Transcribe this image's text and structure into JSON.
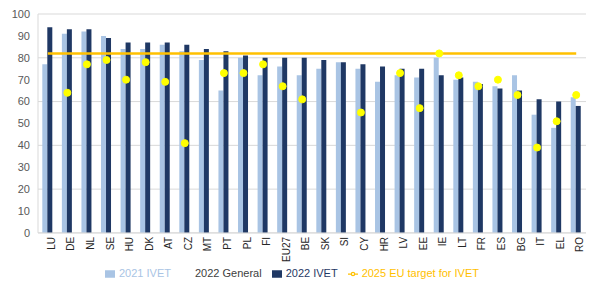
{
  "chart_data": {
    "type": "bar",
    "categories": [
      "LU",
      "DE",
      "NL",
      "SE",
      "HU",
      "DK",
      "AT",
      "CZ",
      "MT",
      "PT",
      "PL",
      "FI",
      "EU27",
      "BE",
      "SK",
      "SI",
      "CY",
      "HR",
      "LV",
      "EE",
      "IE",
      "LT",
      "FR",
      "ES",
      "BG",
      "IT",
      "EL",
      "RO"
    ],
    "series": [
      {
        "name": "2021 IVET",
        "type": "bar",
        "color": "#a9c4e4",
        "values": [
          77,
          91,
          92,
          90,
          84,
          84,
          86,
          83,
          79,
          65,
          80,
          72,
          76,
          72,
          75,
          78,
          75,
          69,
          72,
          71,
          80,
          70,
          69,
          67,
          72,
          54,
          48,
          62
        ]
      },
      {
        "name": "2022 IVET",
        "type": "bar",
        "color": "#1f3864",
        "values": [
          94,
          93,
          93,
          89,
          87,
          87,
          87,
          86,
          84,
          83,
          81,
          80,
          80,
          80,
          79,
          78,
          77,
          76,
          75,
          75,
          72,
          71,
          68,
          66,
          65,
          61,
          60,
          58
        ]
      },
      {
        "name": "2022 General",
        "type": "scatter",
        "marker": "circle",
        "color": "#ffff00",
        "values": [
          null,
          64,
          77,
          79,
          70,
          78,
          69,
          41,
          null,
          73,
          73,
          77,
          67,
          61,
          null,
          null,
          55,
          null,
          73,
          57,
          82,
          72,
          67,
          70,
          63,
          39,
          51,
          63
        ]
      },
      {
        "name": "2025 EU target for IVET",
        "type": "line",
        "color": "#ffc000",
        "values": [
          82,
          82,
          82,
          82,
          82,
          82,
          82,
          82,
          82,
          82,
          82,
          82,
          82,
          82,
          82,
          82,
          82,
          82,
          82,
          82,
          82,
          82,
          82,
          82,
          82,
          82,
          82,
          82
        ]
      }
    ],
    "ylim": [
      0,
      100
    ],
    "yticks": [
      0,
      10,
      20,
      30,
      40,
      50,
      60,
      70,
      80,
      90,
      100
    ],
    "grid": true,
    "legend": "bottom"
  }
}
